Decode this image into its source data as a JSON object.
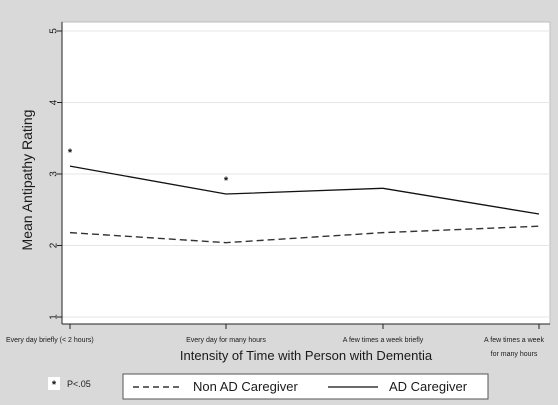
{
  "chart_data": {
    "type": "line",
    "xlabel": "Intensity of Time with Person with Dementia",
    "ylabel": "Mean Antipathy Rating",
    "categories": [
      [
        "Every day briefly (< 2 hours)"
      ],
      [
        "Every day for many hours"
      ],
      [
        "A few times a week briefly"
      ],
      [
        "A few times a week",
        "for many hours"
      ]
    ],
    "ylim": [
      1,
      5
    ],
    "yticks": [
      "1",
      "2",
      "3",
      "4",
      "5"
    ],
    "grid": true,
    "series": [
      {
        "name": "Non AD Caregiver",
        "style": "dashed",
        "color": "#333333",
        "values": [
          2.18,
          2.04,
          2.18,
          2.27
        ]
      },
      {
        "name": "AD Caregiver",
        "style": "solid",
        "color": "#111111",
        "values": [
          3.11,
          2.72,
          2.8,
          2.44
        ]
      }
    ],
    "significance_markers": [
      {
        "series": "AD Caregiver",
        "category_index": 0,
        "symbol": "*"
      },
      {
        "series": "AD Caregiver",
        "category_index": 1,
        "symbol": "*"
      }
    ],
    "significance_note": {
      "symbol": "*",
      "text": "P<.05"
    },
    "legend_position": "bottom"
  }
}
